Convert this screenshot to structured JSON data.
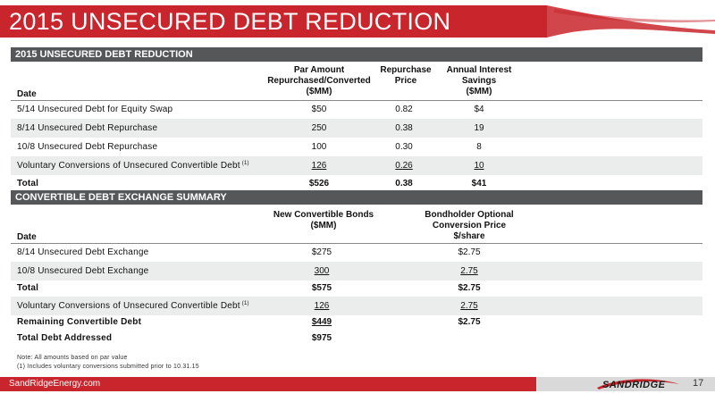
{
  "slide": {
    "title": "2015 UNSECURED DEBT REDUCTION",
    "footer_site": "SandRidgeEnergy.com",
    "logo_text": "SANDRIDGE",
    "page_number": "17",
    "brand_color": "#c8262c"
  },
  "table1": {
    "section_title": "2015 UNSECURED DEBT REDUCTION",
    "date_header": "Date",
    "col_par_line1": "Par Amount",
    "col_par_line2": "Repurchased/Converted",
    "col_par_line3": "($MM)",
    "col_price_line1": "Repurchase",
    "col_price_line2": "Price",
    "col_savings_line1": "Annual Interest",
    "col_savings_line2": "Savings",
    "col_savings_line3": "($MM)",
    "rows": [
      {
        "label": "5/14 Unsecured Debt for Equity Swap",
        "par": "$50",
        "price": "0.82",
        "savings": "$4"
      },
      {
        "label": "8/14 Unsecured Debt Repurchase",
        "par": "250",
        "price": "0.38",
        "savings": "19"
      },
      {
        "label": "10/8 Unsecured Debt Repurchase",
        "par": "100",
        "price": "0.30",
        "savings": "8"
      },
      {
        "label": "Voluntary Conversions of Unsecured Convertible Debt",
        "sup": "(1)",
        "par": "126",
        "price": "0.26",
        "savings": "10"
      }
    ],
    "total": {
      "label": "Total",
      "par": "$526",
      "price": "0.38",
      "savings": "$41"
    }
  },
  "table2": {
    "section_title": "CONVERTIBLE DEBT EXCHANGE SUMMARY",
    "date_header": "Date",
    "col_bonds_line1": "New Convertible Bonds",
    "col_bonds_line2": "($MM)",
    "col_conv_line1": "Bondholder Optional",
    "col_conv_line2": "Conversion Price",
    "col_conv_line3": "$/share",
    "rows": [
      {
        "label": "8/14 Unsecured Debt Exchange",
        "bonds": "$275",
        "conv": "$2.75"
      },
      {
        "label": "10/8 Unsecured Debt Exchange",
        "bonds": "300",
        "conv": "2.75"
      }
    ],
    "total": {
      "label": "Total",
      "bonds": "$575",
      "conv": "$2.75"
    },
    "voluntary": {
      "label": "Voluntary Conversions of Unsecured Convertible Debt",
      "sup": "(1)",
      "bonds": "126",
      "conv": "2.75"
    },
    "remaining": {
      "label": "Remaining Convertible Debt",
      "bonds": "$449",
      "conv": "$2.75"
    },
    "addressed": {
      "label": "Total Debt Addressed",
      "bonds": "$975"
    }
  },
  "notes": {
    "line1": "Note: All amounts based on par value",
    "line2": "(1) Includes voluntary conversions submitted prior to 10.31.15"
  }
}
